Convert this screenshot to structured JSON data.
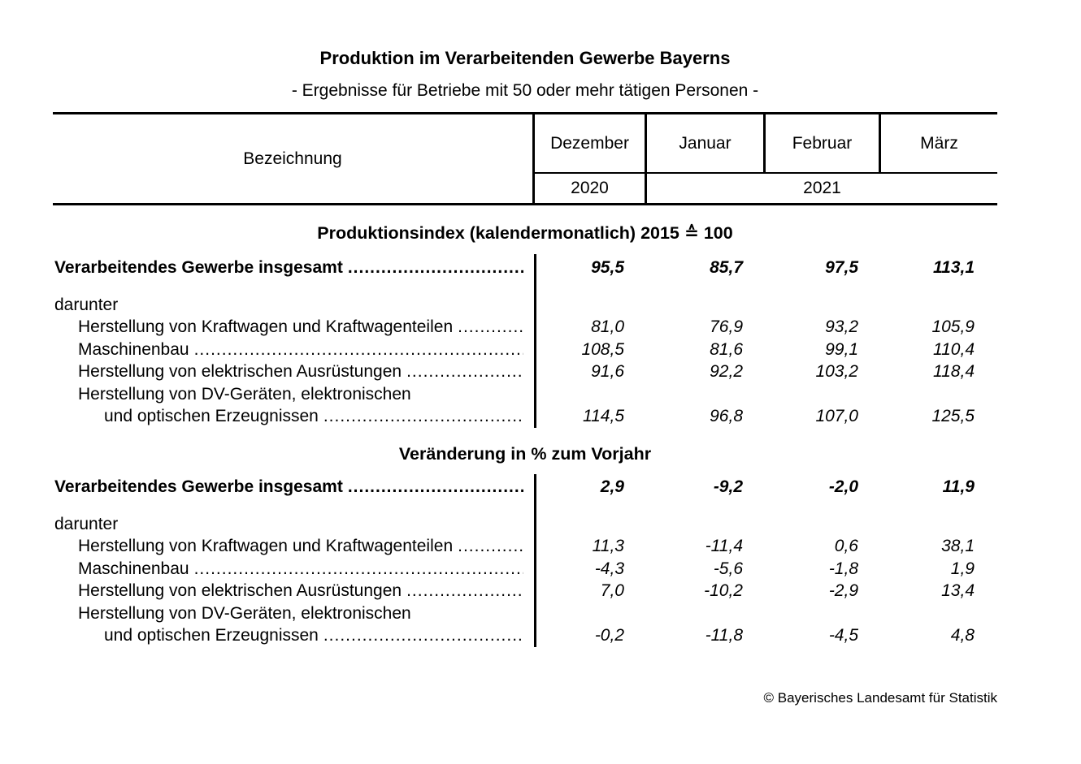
{
  "page": {
    "title": "Produktion im Verarbeitenden Gewerbe Bayerns",
    "subtitle": "- Ergebnisse für Betriebe mit 50 oder mehr tätigen Personen -",
    "footer": "© Bayerisches Landesamt für Statistik",
    "leader_dots": "........................................................................................................................................................................"
  },
  "table_header": {
    "label_column": "Bezeichnung",
    "months": [
      "Dezember",
      "Januar",
      "Februar",
      "März"
    ],
    "years": {
      "first": "2020",
      "rest": "2021"
    }
  },
  "sections": [
    {
      "title": "Produktionsindex (kalendermonatlich) 2015 ≙ 100",
      "rows": [
        {
          "label": "Verarbeitendes Gewerbe insgesamt",
          "values": [
            "95,5",
            "85,7",
            "97,5",
            "113,1"
          ]
        },
        {
          "label": "darunter"
        },
        {
          "label": "Herstellung von Kraftwagen und Kraftwagenteilen",
          "values": [
            "81,0",
            "76,9",
            "93,2",
            "105,9"
          ]
        },
        {
          "label": "Maschinenbau",
          "values": [
            "108,5",
            "81,6",
            "99,1",
            "110,4"
          ]
        },
        {
          "label": "Herstellung von elektrischen Ausrüstungen",
          "values": [
            "91,6",
            "92,2",
            "103,2",
            "118,4"
          ]
        },
        {
          "label": "Herstellung von DV-Geräten, elektronischen"
        },
        {
          "label": "und optischen Erzeugnissen",
          "values": [
            "114,5",
            "96,8",
            "107,0",
            "125,5"
          ]
        }
      ]
    },
    {
      "title": "Veränderung in % zum Vorjahr",
      "rows": [
        {
          "label": "Verarbeitendes Gewerbe insgesamt",
          "values": [
            "2,9",
            "-9,2",
            "-2,0",
            "11,9"
          ]
        },
        {
          "label": "darunter"
        },
        {
          "label": "Herstellung von Kraftwagen und Kraftwagenteilen",
          "values": [
            "11,3",
            "-11,4",
            "0,6",
            "38,1"
          ]
        },
        {
          "label": "Maschinenbau",
          "values": [
            "-4,3",
            "-5,6",
            "-1,8",
            "1,9"
          ]
        },
        {
          "label": "Herstellung von elektrischen Ausrüstungen",
          "values": [
            "7,0",
            "-10,2",
            "-2,9",
            "13,4"
          ]
        },
        {
          "label": "Herstellung von DV-Geräten, elektronischen"
        },
        {
          "label": "und optischen Erzeugnissen",
          "values": [
            "-0,2",
            "-11,8",
            "-4,5",
            "4,8"
          ]
        }
      ]
    }
  ]
}
